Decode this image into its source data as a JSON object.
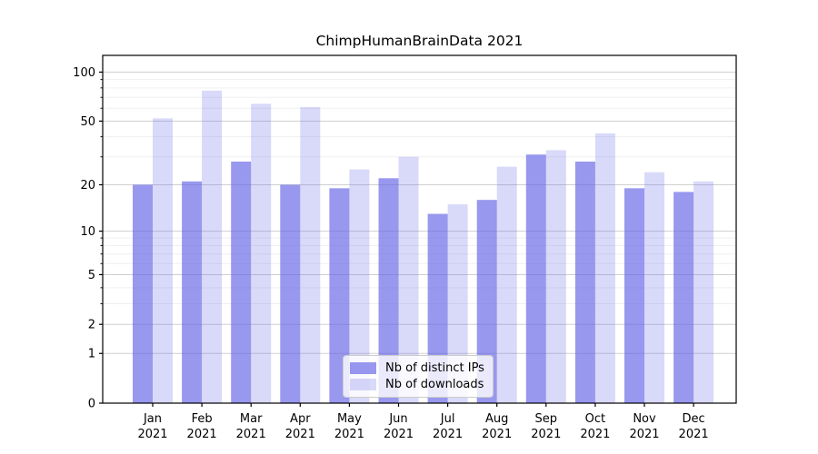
{
  "chart_data": {
    "type": "bar",
    "title": "ChimpHumanBrainData 2021",
    "xlabel": "",
    "ylabel": "",
    "yscale": "symlog",
    "ylim": [
      0,
      126
    ],
    "yticks": [
      0,
      1,
      2,
      5,
      10,
      20,
      50,
      100
    ],
    "minor_yticks": [
      3,
      4,
      6,
      7,
      8,
      9,
      30,
      40,
      60,
      70,
      80,
      90
    ],
    "grid": "horizontal",
    "legend_position": "lower-center-inside",
    "categories": [
      "Jan",
      "Feb",
      "Mar",
      "Apr",
      "May",
      "Jun",
      "Jul",
      "Aug",
      "Sep",
      "Oct",
      "Nov",
      "Dec"
    ],
    "year_label": "2021",
    "series": [
      {
        "name": "Nb of distinct IPs",
        "color": "rgba(102,102,230,0.67)",
        "values": [
          20,
          21,
          28,
          20,
          19,
          22,
          13,
          16,
          31,
          28,
          19,
          18
        ]
      },
      {
        "name": "Nb of downloads",
        "color": "rgba(102,102,230,0.25)",
        "values": [
          52,
          77,
          64,
          61,
          25,
          30,
          15,
          26,
          33,
          42,
          24,
          21
        ]
      }
    ]
  },
  "colors": {
    "axis": "#000000",
    "grid_major": "#cfcfcf",
    "grid_minor": "#efefef",
    "text": "#000000",
    "legend_border": "#cccccc",
    "legend_bg": "rgba(255,255,255,0.8)"
  }
}
